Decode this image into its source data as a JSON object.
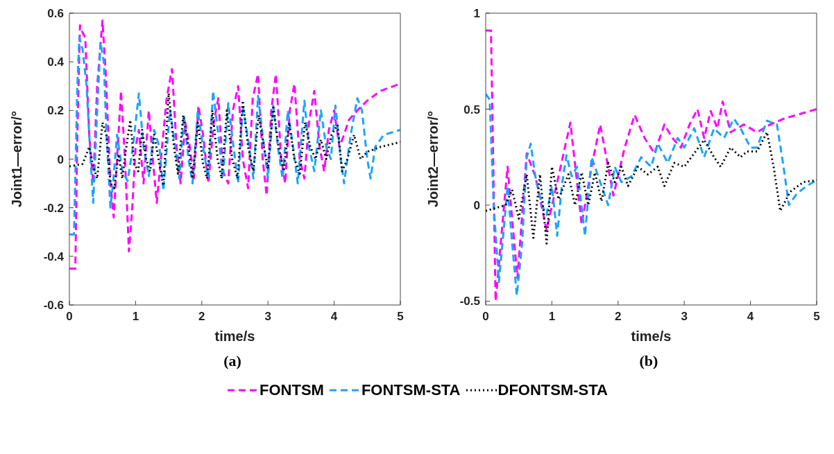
{
  "chart_data": [
    {
      "type": "line",
      "xlabel": "time/s",
      "ylabel": "Joint1—error/°",
      "annotations": [
        "(a)"
      ],
      "xlim": [
        0,
        5
      ],
      "xticks": [
        0,
        1,
        2,
        3,
        4,
        5
      ],
      "ylim": [
        -0.6,
        0.6
      ],
      "yticks": [
        -0.6,
        -0.4,
        -0.2,
        0,
        0.2,
        0.4,
        0.6
      ],
      "legend": "bottom",
      "marker": "none",
      "series": [
        {
          "name": "FONTSM",
          "color": "#ff00ff",
          "line_style": "dashed",
          "x": [
            0,
            0.09,
            0.12,
            0.16,
            0.2,
            0.24,
            0.3,
            0.36,
            0.42,
            0.5,
            0.55,
            0.62,
            0.67,
            0.72,
            0.78,
            0.84,
            0.9,
            0.95,
            1.0,
            1.05,
            1.12,
            1.2,
            1.26,
            1.32,
            1.4,
            1.47,
            1.55,
            1.62,
            1.68,
            1.75,
            1.82,
            1.88,
            1.95,
            2.02,
            2.1,
            2.18,
            2.25,
            2.32,
            2.4,
            2.47,
            2.55,
            2.62,
            2.7,
            2.77,
            2.85,
            2.92,
            2.98,
            3.05,
            3.12,
            3.2,
            3.26,
            3.33,
            3.4,
            3.48,
            3.55,
            3.62,
            3.7,
            3.78,
            3.85,
            3.92,
            4.0,
            4.08,
            4.15,
            4.22,
            4.35,
            4.5,
            4.7,
            5.0
          ],
          "values": [
            -0.45,
            -0.45,
            0.1,
            0.55,
            0.52,
            0.5,
            0.1,
            -0.1,
            0.3,
            0.57,
            0.35,
            -0.1,
            -0.24,
            0.0,
            0.28,
            0.0,
            -0.38,
            -0.2,
            0.05,
            0.12,
            -0.1,
            0.2,
            0.0,
            -0.18,
            0.05,
            0.25,
            0.37,
            0.05,
            -0.1,
            0.15,
            0.05,
            -0.08,
            0.22,
            0.1,
            -0.1,
            0.15,
            0.25,
            -0.05,
            -0.1,
            0.2,
            0.3,
            0.0,
            -0.12,
            0.25,
            0.35,
            0.0,
            -0.15,
            0.2,
            0.35,
            0.0,
            -0.1,
            0.2,
            0.31,
            0.0,
            -0.08,
            0.15,
            0.28,
            0.05,
            -0.05,
            0.12,
            0.2,
            0.05,
            0.1,
            0.16,
            0.2,
            0.24,
            0.28,
            0.31
          ]
        },
        {
          "name": "FONTSM-STA",
          "color": "#1aa3ff",
          "line_style": "dashed",
          "x": [
            0,
            0.07,
            0.12,
            0.15,
            0.2,
            0.26,
            0.32,
            0.36,
            0.42,
            0.47,
            0.52,
            0.56,
            0.62,
            0.66,
            0.72,
            0.8,
            0.88,
            0.96,
            1.05,
            1.12,
            1.2,
            1.28,
            1.36,
            1.42,
            1.52,
            1.6,
            1.66,
            1.73,
            1.8,
            1.86,
            1.94,
            2.02,
            2.1,
            2.17,
            2.25,
            2.32,
            2.4,
            2.48,
            2.55,
            2.62,
            2.7,
            2.78,
            2.85,
            2.92,
            3.0,
            3.08,
            3.15,
            3.22,
            3.3,
            3.38,
            3.45,
            3.55,
            3.62,
            3.7,
            3.8,
            3.88,
            3.95,
            4.02,
            4.1,
            4.15,
            4.25,
            4.35,
            4.42,
            4.5,
            4.55,
            4.62,
            4.75,
            5.0
          ],
          "values": [
            -0.31,
            -0.31,
            0.3,
            0.5,
            0.45,
            0.3,
            0.0,
            -0.18,
            0.2,
            0.48,
            0.4,
            0.1,
            -0.2,
            -0.1,
            0.1,
            -0.05,
            -0.09,
            0.05,
            0.27,
            0.05,
            -0.07,
            0.12,
            0.05,
            -0.13,
            0.2,
            0.05,
            -0.08,
            0.18,
            0.0,
            -0.1,
            0.2,
            0.05,
            -0.08,
            0.28,
            0.1,
            -0.08,
            0.23,
            0.05,
            -0.1,
            0.22,
            0.08,
            -0.08,
            0.26,
            0.1,
            -0.08,
            0.22,
            0.05,
            -0.08,
            0.2,
            0.05,
            -0.1,
            0.24,
            0.05,
            -0.05,
            0.2,
            0.05,
            0.0,
            0.22,
            0.0,
            -0.1,
            0.1,
            0.25,
            0.2,
            0.0,
            -0.08,
            0.05,
            0.1,
            0.12
          ]
        },
        {
          "name": "DFONTSM-STA",
          "color": "#000000",
          "line_style": "dotted",
          "x": [
            0,
            0.2,
            0.3,
            0.36,
            0.42,
            0.5,
            0.56,
            0.62,
            0.68,
            0.74,
            0.8,
            0.86,
            0.92,
            0.98,
            1.04,
            1.1,
            1.16,
            1.22,
            1.28,
            1.36,
            1.42,
            1.5,
            1.58,
            1.64,
            1.72,
            1.8,
            1.86,
            1.94,
            2.02,
            2.08,
            2.16,
            2.24,
            2.3,
            2.38,
            2.46,
            2.54,
            2.62,
            2.7,
            2.78,
            2.86,
            2.94,
            3.0,
            3.08,
            3.16,
            3.24,
            3.32,
            3.4,
            3.48,
            3.56,
            3.64,
            3.72,
            3.8,
            3.88,
            3.96,
            4.05,
            4.12,
            4.2,
            4.3,
            4.4,
            4.5,
            4.7,
            5.0
          ],
          "values": [
            -0.03,
            -0.02,
            0.05,
            -0.03,
            -0.08,
            0.15,
            0.1,
            -0.1,
            -0.12,
            0.02,
            -0.08,
            0.05,
            0.16,
            -0.02,
            -0.05,
            0.12,
            0.0,
            -0.05,
            0.1,
            -0.02,
            -0.11,
            0.27,
            0.05,
            -0.06,
            0.18,
            0.05,
            -0.08,
            0.15,
            -0.02,
            -0.08,
            0.2,
            0.0,
            -0.08,
            0.2,
            0.0,
            -0.08,
            0.24,
            0.05,
            -0.05,
            0.18,
            0.05,
            -0.04,
            0.22,
            0.05,
            -0.05,
            0.15,
            0.0,
            -0.06,
            0.15,
            0.05,
            0.0,
            0.08,
            0.0,
            0.1,
            0.14,
            -0.05,
            0.0,
            0.1,
            0.0,
            0.03,
            0.05,
            0.07
          ]
        }
      ]
    },
    {
      "type": "line",
      "xlabel": "time/s",
      "ylabel": "Joint2—error/°",
      "annotations": [
        "(b)"
      ],
      "xlim": [
        0,
        5
      ],
      "xticks": [
        0,
        1,
        2,
        3,
        4,
        5
      ],
      "ylim": [
        -0.52,
        1
      ],
      "yticks": [
        -0.5,
        0,
        0.5,
        1
      ],
      "marker": "none",
      "series": [
        {
          "color": "#ff00ff",
          "line_style": "dashed",
          "x": [
            0,
            0.08,
            0.15,
            0.33,
            0.48,
            0.62,
            0.75,
            0.92,
            1.1,
            1.28,
            1.45,
            1.6,
            1.73,
            1.93,
            2.1,
            2.25,
            2.4,
            2.55,
            2.7,
            2.82,
            2.95,
            3.08,
            3.2,
            3.3,
            3.4,
            3.5,
            3.58,
            3.7,
            3.9,
            4.1,
            4.3,
            4.5,
            5.0
          ],
          "values": [
            0.91,
            0.91,
            -0.5,
            0.2,
            -0.38,
            0.27,
            0.15,
            -0.13,
            0.15,
            0.43,
            -0.1,
            0.2,
            0.42,
            0.05,
            0.3,
            0.47,
            0.35,
            0.27,
            0.42,
            0.35,
            0.3,
            0.42,
            0.5,
            0.35,
            0.49,
            0.4,
            0.54,
            0.38,
            0.42,
            0.38,
            0.42,
            0.45,
            0.5
          ]
        },
        {
          "color": "#1aa3ff",
          "line_style": "dashed",
          "x": [
            0,
            0.06,
            0.12,
            0.2,
            0.28,
            0.33,
            0.4,
            0.47,
            0.55,
            0.62,
            0.68,
            0.75,
            0.85,
            0.92,
            1.0,
            1.08,
            1.15,
            1.22,
            1.3,
            1.38,
            1.5,
            1.6,
            1.7,
            1.85,
            1.95,
            2.05,
            2.2,
            2.35,
            2.5,
            2.6,
            2.75,
            2.9,
            3.0,
            3.15,
            3.3,
            3.45,
            3.6,
            3.75,
            3.85,
            4.0,
            4.1,
            4.25,
            4.4,
            4.5,
            4.58,
            4.7,
            4.85,
            5.0
          ],
          "values": [
            0.58,
            0.55,
            0.0,
            -0.4,
            -0.1,
            0.1,
            -0.2,
            -0.47,
            -0.2,
            0.25,
            0.32,
            0.15,
            0.0,
            -0.05,
            0.1,
            -0.16,
            0.1,
            0.26,
            0.15,
            0.2,
            -0.16,
            0.25,
            0.15,
            0.0,
            0.2,
            0.12,
            0.15,
            0.25,
            0.2,
            0.32,
            0.22,
            0.35,
            0.3,
            0.4,
            0.25,
            0.4,
            0.35,
            0.45,
            0.4,
            0.3,
            0.3,
            0.44,
            0.42,
            0.2,
            0.0,
            0.06,
            0.1,
            0.13
          ]
        },
        {
          "color": "#000000",
          "line_style": "dotted",
          "x": [
            0,
            0.3,
            0.4,
            0.5,
            0.62,
            0.72,
            0.82,
            0.92,
            1.0,
            1.1,
            1.25,
            1.35,
            1.45,
            1.55,
            1.65,
            1.75,
            1.85,
            1.95,
            2.05,
            2.15,
            2.3,
            2.45,
            2.6,
            2.7,
            2.85,
            3.0,
            3.15,
            3.3,
            3.45,
            3.55,
            3.7,
            3.85,
            3.95,
            4.1,
            4.25,
            4.35,
            4.45,
            4.6,
            4.8,
            5.0
          ],
          "values": [
            -0.03,
            0.0,
            0.08,
            -0.07,
            0.16,
            -0.17,
            0.16,
            -0.2,
            0.2,
            0.03,
            0.16,
            0.0,
            0.17,
            0.0,
            0.17,
            0.02,
            0.22,
            0.12,
            0.2,
            0.1,
            0.2,
            0.16,
            0.2,
            0.1,
            0.22,
            0.2,
            0.27,
            0.34,
            0.25,
            0.2,
            0.3,
            0.25,
            0.28,
            0.28,
            0.38,
            0.2,
            -0.03,
            0.07,
            0.12,
            0.13
          ]
        }
      ]
    }
  ]
}
